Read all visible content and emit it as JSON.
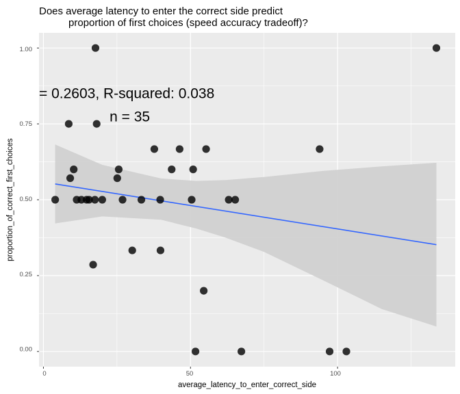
{
  "chart_data": {
    "type": "scatter",
    "title_lines": [
      "Does average latency to enter the correct side predict",
      "proportion of first choices (speed accuracy tradeoff)?"
    ],
    "xlabel": "average_latency_to_enter_correct_side",
    "ylabel": "proportion_of_correct_first_choices",
    "xlim": [
      -1.5,
      140
    ],
    "ylim": [
      -0.05,
      1.05
    ],
    "x_ticks": [
      0,
      50,
      100
    ],
    "y_ticks": [
      0.0,
      0.25,
      0.5,
      0.75,
      1.0
    ],
    "x_tick_labels": [
      "0",
      "50",
      "100"
    ],
    "y_tick_labels": [
      "0.00",
      "0.25",
      "0.50",
      "0.75",
      "1.00"
    ],
    "grid": true,
    "background_color": "#ebebeb",
    "grid_color": "#ffffff",
    "point_color": "#000000",
    "fit_line_color": "#3366ff",
    "band_color": "#cfcfcf",
    "annotations": [
      {
        "text": "= 0.2603, R-squared:  0.038",
        "x": -1.5,
        "y": 0.835
      },
      {
        "text": "n = 35",
        "x": 22.5,
        "y": 0.758
      }
    ],
    "points": [
      {
        "x": 17.7,
        "y": 1.0
      },
      {
        "x": 133.6,
        "y": 1.0
      },
      {
        "x": 8.6,
        "y": 0.75
      },
      {
        "x": 18.1,
        "y": 0.75
      },
      {
        "x": 37.7,
        "y": 0.667
      },
      {
        "x": 46.3,
        "y": 0.667
      },
      {
        "x": 55.3,
        "y": 0.667
      },
      {
        "x": 93.9,
        "y": 0.667
      },
      {
        "x": 10.3,
        "y": 0.6
      },
      {
        "x": 25.6,
        "y": 0.6
      },
      {
        "x": 43.6,
        "y": 0.6
      },
      {
        "x": 50.9,
        "y": 0.6
      },
      {
        "x": 9.1,
        "y": 0.571
      },
      {
        "x": 25.1,
        "y": 0.571
      },
      {
        "x": 4.0,
        "y": 0.5
      },
      {
        "x": 11.3,
        "y": 0.5
      },
      {
        "x": 12.9,
        "y": 0.5
      },
      {
        "x": 14.7,
        "y": 0.5
      },
      {
        "x": 15.5,
        "y": 0.5
      },
      {
        "x": 17.5,
        "y": 0.5
      },
      {
        "x": 20.0,
        "y": 0.5
      },
      {
        "x": 26.9,
        "y": 0.5
      },
      {
        "x": 33.3,
        "y": 0.5
      },
      {
        "x": 39.7,
        "y": 0.5
      },
      {
        "x": 50.4,
        "y": 0.5
      },
      {
        "x": 63.0,
        "y": 0.5
      },
      {
        "x": 65.2,
        "y": 0.5
      },
      {
        "x": 30.2,
        "y": 0.333
      },
      {
        "x": 39.8,
        "y": 0.333
      },
      {
        "x": 16.9,
        "y": 0.286
      },
      {
        "x": 54.5,
        "y": 0.2
      },
      {
        "x": 51.7,
        "y": 0.0
      },
      {
        "x": 67.3,
        "y": 0.0
      },
      {
        "x": 97.3,
        "y": 0.0
      },
      {
        "x": 103.0,
        "y": 0.0
      }
    ],
    "fit_line": {
      "x": [
        4.0,
        133.6
      ],
      "y": [
        0.552,
        0.352
      ]
    },
    "confidence_band": {
      "x": [
        4.0,
        20.0,
        40.0,
        52.0,
        62.0,
        75.0,
        95.0,
        115.0,
        133.6
      ],
      "upper": [
        0.682,
        0.615,
        0.57,
        0.562,
        0.565,
        0.575,
        0.595,
        0.61,
        0.622
      ],
      "lower": [
        0.422,
        0.445,
        0.434,
        0.405,
        0.375,
        0.328,
        0.235,
        0.14,
        0.082
      ]
    }
  }
}
